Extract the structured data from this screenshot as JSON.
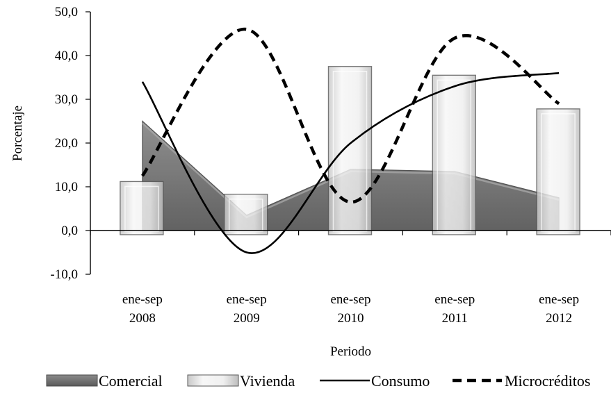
{
  "chart_data": {
    "type": "bar",
    "categories": [
      [
        "ene-sep",
        "2008"
      ],
      [
        "ene-sep",
        "2009"
      ],
      [
        "ene-sep",
        "2010"
      ],
      [
        "ene-sep",
        "2011"
      ],
      [
        "ene-sep",
        "2012"
      ]
    ],
    "xlabel": "Periodo",
    "ylabel": "Porcentaje",
    "ylim": [
      -10,
      50
    ],
    "yticks": [
      "-10,0",
      "0,0",
      "10,0",
      "20,0",
      "30,0",
      "40,0",
      "50,0"
    ],
    "grid": false,
    "legend_position": "bottom",
    "series": [
      {
        "name": "Comercial",
        "kind": "area",
        "values": [
          25.0,
          3.5,
          14.0,
          13.5,
          7.5
        ],
        "color": "#6e6e6e"
      },
      {
        "name": "Vivienda",
        "kind": "bar",
        "values": [
          11.2,
          8.3,
          37.5,
          35.5,
          27.8
        ],
        "color": "#e6e6e6"
      },
      {
        "name": "Consumo",
        "kind": "line",
        "style": "solid",
        "values": [
          34.0,
          -5.0,
          20.0,
          33.0,
          36.0
        ],
        "color": "#000000"
      },
      {
        "name": "Microcréditos",
        "kind": "line",
        "style": "dashed",
        "values": [
          12.5,
          46.0,
          6.5,
          44.0,
          29.0
        ],
        "color": "#000000"
      }
    ]
  }
}
